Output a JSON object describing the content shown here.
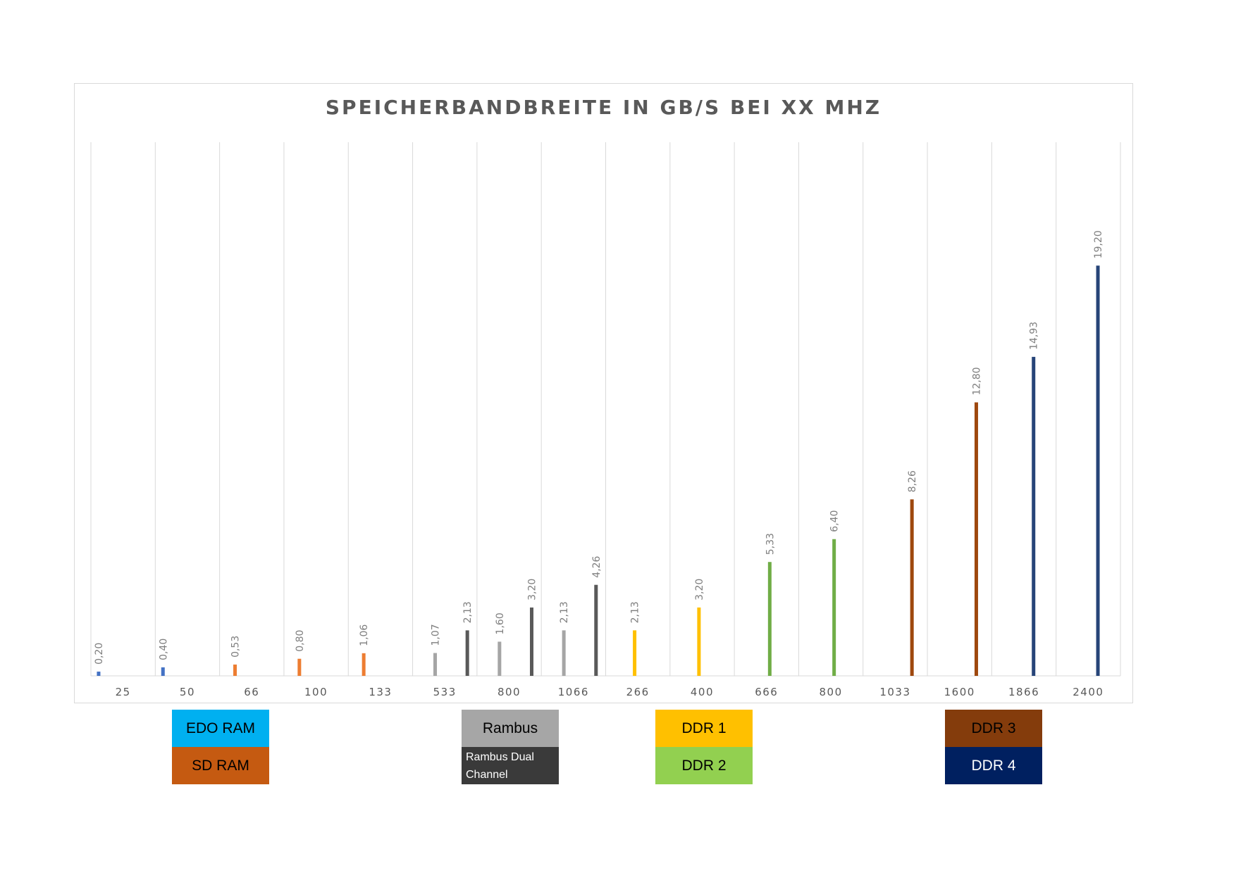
{
  "chart_data": {
    "type": "bar",
    "title": "SPEICHERBANDBREITE IN GB/S BEI XX MHZ",
    "xlabel": "",
    "ylabel": "",
    "ylim": [
      0,
      25
    ],
    "grid": "vertical",
    "legend_placement": "bottom",
    "categories": [
      "25",
      "50",
      "66",
      "100",
      "133",
      "533",
      "800",
      "1066",
      "266",
      "400",
      "666",
      "800",
      "1033",
      "1600",
      "1866",
      "2400"
    ],
    "series": [
      {
        "name": "EDO RAM",
        "color": "#4472c4",
        "values": [
          0.2,
          0.4,
          null,
          null,
          null,
          null,
          null,
          null,
          null,
          null,
          null,
          null,
          null,
          null,
          null,
          null
        ],
        "labels": [
          "0,20",
          "0,40",
          null,
          null,
          null,
          null,
          null,
          null,
          null,
          null,
          null,
          null,
          null,
          null,
          null,
          null
        ]
      },
      {
        "name": "SD RAM",
        "color": "#ed7d31",
        "values": [
          null,
          null,
          0.53,
          0.8,
          1.06,
          null,
          null,
          null,
          null,
          null,
          null,
          null,
          null,
          null,
          null,
          null
        ],
        "labels": [
          null,
          null,
          "0,53",
          "0,80",
          "1,06",
          null,
          null,
          null,
          null,
          null,
          null,
          null,
          null,
          null,
          null,
          null
        ]
      },
      {
        "name": "Rambus",
        "color": "#a5a5a5",
        "values": [
          null,
          null,
          null,
          null,
          null,
          1.07,
          1.6,
          2.13,
          null,
          null,
          null,
          null,
          null,
          null,
          null,
          null
        ],
        "labels": [
          null,
          null,
          null,
          null,
          null,
          "1,07",
          "1,60",
          "2,13",
          null,
          null,
          null,
          null,
          null,
          null,
          null,
          null
        ]
      },
      {
        "name": "Rambus Dual Channel",
        "color": "#595959",
        "values": [
          null,
          null,
          null,
          null,
          null,
          2.13,
          3.2,
          4.26,
          null,
          null,
          null,
          null,
          null,
          null,
          null,
          null
        ],
        "labels": [
          null,
          null,
          null,
          null,
          null,
          "2,13",
          "3,20",
          "4,26",
          null,
          null,
          null,
          null,
          null,
          null,
          null,
          null
        ]
      },
      {
        "name": "DDR 1",
        "color": "#ffc000",
        "values": [
          null,
          null,
          null,
          null,
          null,
          null,
          null,
          null,
          2.13,
          3.2,
          null,
          null,
          null,
          null,
          null,
          null
        ],
        "labels": [
          null,
          null,
          null,
          null,
          null,
          null,
          null,
          null,
          "2,13",
          "3,20",
          null,
          null,
          null,
          null,
          null,
          null
        ]
      },
      {
        "name": "DDR 2",
        "color": "#70ad47",
        "values": [
          null,
          null,
          null,
          null,
          null,
          null,
          null,
          null,
          null,
          null,
          5.33,
          6.4,
          null,
          null,
          null,
          null
        ],
        "labels": [
          null,
          null,
          null,
          null,
          null,
          null,
          null,
          null,
          null,
          null,
          "5,33",
          "6,40",
          null,
          null,
          null,
          null
        ]
      },
      {
        "name": "DDR 3",
        "color": "#9e480e",
        "values": [
          null,
          null,
          null,
          null,
          null,
          null,
          null,
          null,
          null,
          null,
          null,
          null,
          8.26,
          12.8,
          null,
          null
        ],
        "labels": [
          null,
          null,
          null,
          null,
          null,
          null,
          null,
          null,
          null,
          null,
          null,
          null,
          "8,26",
          "12,80",
          null,
          null
        ]
      },
      {
        "name": "DDR 4",
        "color": "#264478",
        "values": [
          null,
          null,
          null,
          null,
          null,
          null,
          null,
          null,
          null,
          null,
          null,
          null,
          null,
          null,
          14.93,
          19.2
        ],
        "labels": [
          null,
          null,
          null,
          null,
          null,
          null,
          null,
          null,
          null,
          null,
          null,
          null,
          null,
          null,
          "14,93",
          "19,20"
        ]
      }
    ]
  },
  "legend": [
    {
      "label": "EDO RAM",
      "color": "#00b0f0"
    },
    {
      "label": "SD RAM",
      "color": "#c55a11"
    },
    {
      "label": "Rambus",
      "color": "#a6a6a6"
    },
    {
      "label": "Rambus Dual Channel",
      "color": "#3a3a3a"
    },
    {
      "label": "DDR 1",
      "color": "#ffc000"
    },
    {
      "label": "DDR 2",
      "color": "#92d050"
    },
    {
      "label": "DDR 3",
      "color": "#843c0c"
    },
    {
      "label": "DDR 4",
      "color": "#002060"
    }
  ]
}
